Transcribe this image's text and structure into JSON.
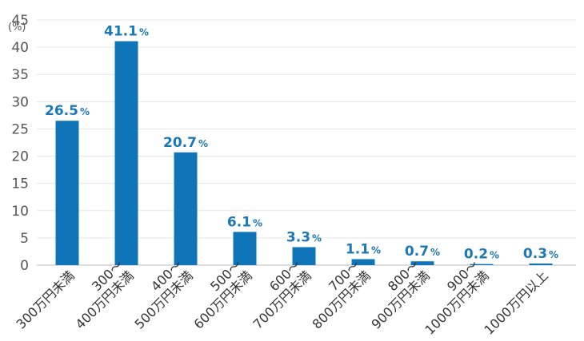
{
  "chart_data": {
    "type": "bar",
    "title": "",
    "xlabel": "",
    "ylabel": "(%)",
    "ylim": [
      0,
      45
    ],
    "yticks": [
      0,
      5,
      10,
      15,
      20,
      25,
      30,
      35,
      40,
      45
    ],
    "grid": true,
    "legend": "none",
    "value_suffix": "%",
    "categories": [
      [
        "300万円未満"
      ],
      [
        "300～",
        "400万円未満"
      ],
      [
        "400～",
        "500万円未満"
      ],
      [
        "500～",
        "600万円未満"
      ],
      [
        "600～",
        "700万円未満"
      ],
      [
        "700～",
        "800万円未満"
      ],
      [
        "800～",
        "900万円未満"
      ],
      [
        "900～",
        "1000万円未満"
      ],
      [
        "1000万円以上"
      ]
    ],
    "values": [
      26.5,
      41.1,
      20.7,
      6.1,
      3.3,
      1.1,
      0.7,
      0.2,
      0.3
    ],
    "value_labels": [
      "26.5",
      "41.1",
      "20.7",
      "6.1",
      "3.3",
      "1.1",
      "0.7",
      "0.2",
      "0.3"
    ]
  },
  "colors": {
    "bar": "#0f75b8",
    "label": "#1a78b5",
    "grid": "#e6e6e6",
    "axis": "#bbbbbb"
  }
}
